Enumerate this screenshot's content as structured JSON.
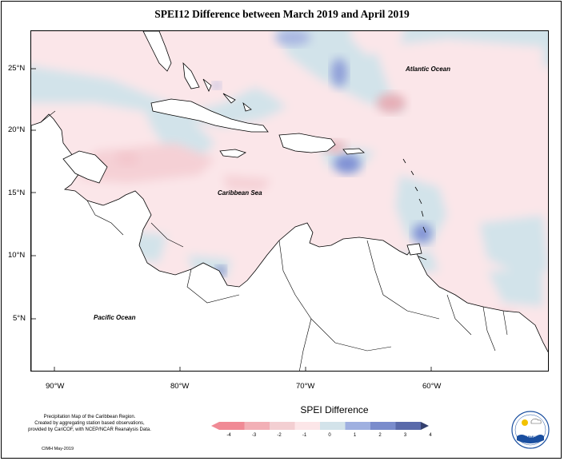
{
  "title": "SPEI12 Difference between March 2019 and April 2019",
  "map": {
    "lat_labels": [
      "25°N",
      "20°N",
      "15°N",
      "10°N",
      "5°N"
    ],
    "lon_labels": [
      "90°W",
      "80°W",
      "70°W",
      "60°W"
    ],
    "ocean_labels": {
      "atlantic": "Atlantic Ocean",
      "caribbean": "Caribbean Sea",
      "pacific": "Pacific Ocean"
    }
  },
  "legend": {
    "title": "SPEI Difference",
    "ticks": [
      "-4",
      "-3",
      "-2",
      "-1",
      "0",
      "1",
      "2",
      "3",
      "4"
    ],
    "colors": [
      "#f08a95",
      "#f2b0b6",
      "#f3cfd2",
      "#fce6e8",
      "#d3e3ea",
      "#9fb0e0",
      "#7a8ccc",
      "#5a6aaa",
      "#34406e"
    ]
  },
  "credits": {
    "line1": "Precipitation Map of the Caribbean Region.",
    "line2": "Created by aggregating station based observations,",
    "line3": "provided by CariCOF, with NCEP/NCAR Reanalysis Data."
  },
  "footer": "CIMH May-2019",
  "logo_text": "CIMH"
}
